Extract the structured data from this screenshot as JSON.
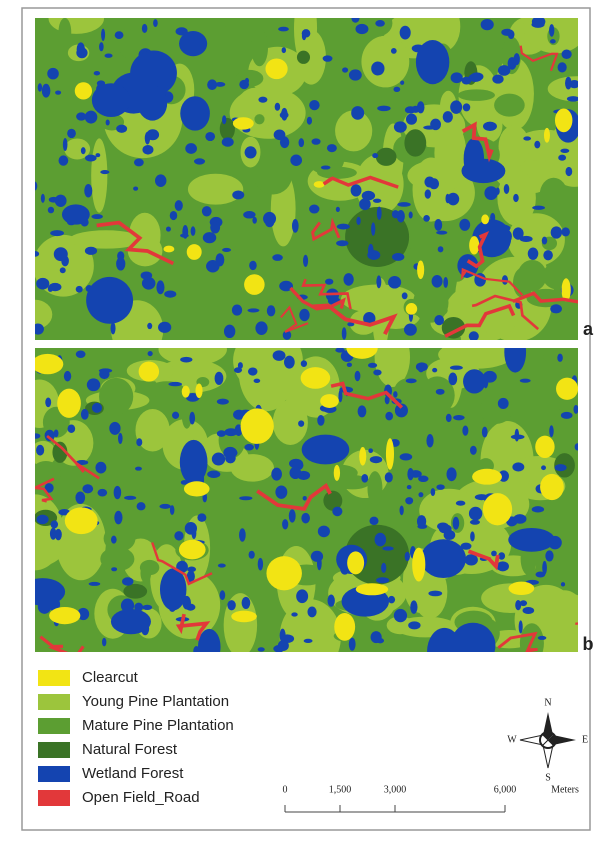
{
  "figure": {
    "panels": [
      {
        "label": "a"
      },
      {
        "label": "b"
      }
    ],
    "legend": [
      {
        "label": "Clearcut",
        "color": "#f2e414"
      },
      {
        "label": "Young Pine  Plantation",
        "color": "#9cc53c"
      },
      {
        "label": "Mature Pine Plantation",
        "color": "#5c9e32"
      },
      {
        "label": "Natural Forest",
        "color": "#3a7326"
      },
      {
        "label": "Wetland Forest",
        "color": "#1444b0"
      },
      {
        "label": "Open Field_Road",
        "color": "#e2383a"
      }
    ],
    "scale_bar": {
      "ticks": [
        0,
        {
          "value": 1500,
          "label": "1,500"
        },
        {
          "value": 3000,
          "label": "3,000"
        },
        {
          "value": 6000,
          "label": "6,000"
        }
      ],
      "unit": "Meters"
    },
    "compass": {
      "north": "N",
      "south": "S",
      "east": "E",
      "west": "W"
    }
  }
}
